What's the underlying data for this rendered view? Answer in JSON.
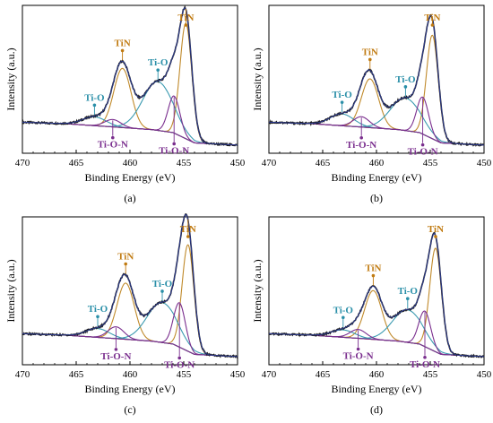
{
  "colors": {
    "raw": "#1a1a1a",
    "envelope": "#2b3a90",
    "background": "#7b2f8a",
    "tin": "#c08a2b",
    "tio": "#3a9ab0",
    "tion": "#7a2e8e",
    "tin_label": "#c07a10",
    "tio_label": "#2a8fa8",
    "tion_label": "#7a2e8e"
  },
  "chart_data": [
    {
      "type": "line",
      "panel_label": "(a)",
      "xlabel": "Binding Energy (eV)",
      "ylabel": "Intensity (a.u.)",
      "xlim": [
        470,
        450
      ],
      "xticks": [
        "470",
        "465",
        "460",
        "455",
        "450"
      ],
      "background": [
        [
          470,
          0.21
        ],
        [
          466,
          0.2
        ],
        [
          462,
          0.18
        ],
        [
          458,
          0.16
        ],
        [
          456,
          0.14
        ],
        [
          454,
          0.07
        ],
        [
          450,
          0.055
        ]
      ],
      "peaks": [
        {
          "label": "TiN",
          "center": 454.8,
          "height": 0.78,
          "width": 0.55
        },
        {
          "label": "TiN",
          "center": 460.7,
          "height": 0.4,
          "width": 0.8
        },
        {
          "label": "Ti-O",
          "center": 457.4,
          "height": 0.33,
          "width": 1.4
        },
        {
          "label": "Ti-O",
          "center": 463.3,
          "height": 0.06,
          "width": 1.1
        },
        {
          "label": "Ti-O-N",
          "center": 455.9,
          "height": 0.25,
          "width": 0.55
        },
        {
          "label": "Ti-O-N",
          "center": 461.6,
          "height": 0.05,
          "width": 0.75
        }
      ],
      "annotations": [
        {
          "text": "TiN",
          "x": 454.8,
          "kind": "tin",
          "dir": "up"
        },
        {
          "text": "TiN",
          "x": 460.7,
          "kind": "tin",
          "dir": "up"
        },
        {
          "text": "Ti-O",
          "x": 457.4,
          "kind": "tio",
          "dir": "up"
        },
        {
          "text": "Ti-O",
          "x": 463.3,
          "kind": "tio",
          "dir": "up"
        },
        {
          "text": "Ti-O-N",
          "x": 461.6,
          "kind": "tion",
          "dir": "down"
        },
        {
          "text": "Ti-O-N",
          "x": 455.9,
          "kind": "tion",
          "dir": "down"
        }
      ]
    },
    {
      "type": "line",
      "panel_label": "(b)",
      "xlabel": "Binding Energy (eV)",
      "ylabel": "Intensity (a.u.)",
      "xlim": [
        470,
        450
      ],
      "xticks": [
        "470",
        "465",
        "460",
        "455",
        "450"
      ],
      "background": [
        [
          470,
          0.21
        ],
        [
          466,
          0.2
        ],
        [
          462,
          0.18
        ],
        [
          458,
          0.16
        ],
        [
          456,
          0.14
        ],
        [
          454,
          0.07
        ],
        [
          450,
          0.055
        ]
      ],
      "peaks": [
        {
          "label": "TiN",
          "center": 454.8,
          "height": 0.7,
          "width": 0.55
        },
        {
          "label": "TiN",
          "center": 460.6,
          "height": 0.33,
          "width": 0.8
        },
        {
          "label": "Ti-O",
          "center": 457.3,
          "height": 0.22,
          "width": 1.4
        },
        {
          "label": "Ti-O",
          "center": 463.2,
          "height": 0.08,
          "width": 1.1
        },
        {
          "label": "Ti-O-N",
          "center": 455.7,
          "height": 0.25,
          "width": 0.55
        },
        {
          "label": "Ti-O-N",
          "center": 461.4,
          "height": 0.07,
          "width": 0.75
        }
      ],
      "annotations": [
        {
          "text": "TiN",
          "x": 454.8,
          "kind": "tin",
          "dir": "up"
        },
        {
          "text": "TiN",
          "x": 460.6,
          "kind": "tin",
          "dir": "up"
        },
        {
          "text": "Ti-O",
          "x": 457.3,
          "kind": "tio",
          "dir": "up"
        },
        {
          "text": "Ti-O",
          "x": 463.2,
          "kind": "tio",
          "dir": "up"
        },
        {
          "text": "Ti-O-N",
          "x": 461.4,
          "kind": "tion",
          "dir": "down"
        },
        {
          "text": "Ti-O-N",
          "x": 455.7,
          "kind": "tion",
          "dir": "down"
        }
      ]
    },
    {
      "type": "line",
      "panel_label": "(c)",
      "xlabel": "Binding Energy (eV)",
      "ylabel": "Intensity (a.u.)",
      "xlim": [
        470,
        450
      ],
      "xticks": [
        "470",
        "465",
        "460",
        "455",
        "450"
      ],
      "background": [
        [
          470,
          0.21
        ],
        [
          466,
          0.2
        ],
        [
          462,
          0.18
        ],
        [
          458,
          0.16
        ],
        [
          456,
          0.14
        ],
        [
          454,
          0.07
        ],
        [
          450,
          0.055
        ]
      ],
      "peaks": [
        {
          "label": "TiN",
          "center": 454.6,
          "height": 0.72,
          "width": 0.55
        },
        {
          "label": "TiN",
          "center": 460.4,
          "height": 0.38,
          "width": 0.8
        },
        {
          "label": "Ti-O",
          "center": 457.0,
          "height": 0.27,
          "width": 1.4
        },
        {
          "label": "Ti-O",
          "center": 463.0,
          "height": 0.06,
          "width": 1.1
        },
        {
          "label": "Ti-O-N",
          "center": 455.4,
          "height": 0.3,
          "width": 0.55
        },
        {
          "label": "Ti-O-N",
          "center": 461.3,
          "height": 0.08,
          "width": 0.75
        }
      ],
      "annotations": [
        {
          "text": "TiN",
          "x": 454.6,
          "kind": "tin",
          "dir": "up"
        },
        {
          "text": "TiN",
          "x": 460.4,
          "kind": "tin",
          "dir": "up"
        },
        {
          "text": "Ti-O",
          "x": 457.0,
          "kind": "tio",
          "dir": "up"
        },
        {
          "text": "Ti-O",
          "x": 463.0,
          "kind": "tio",
          "dir": "up"
        },
        {
          "text": "Ti-O-N",
          "x": 461.3,
          "kind": "tion",
          "dir": "down"
        },
        {
          "text": "Ti-O-N",
          "x": 455.4,
          "kind": "tion",
          "dir": "down"
        }
      ]
    },
    {
      "type": "line",
      "panel_label": "(d)",
      "xlabel": "Binding Energy (eV)",
      "ylabel": "Intensity (a.u.)",
      "xlim": [
        470,
        450
      ],
      "xticks": [
        "470",
        "465",
        "460",
        "455",
        "450"
      ],
      "background": [
        [
          470,
          0.21
        ],
        [
          466,
          0.2
        ],
        [
          462,
          0.18
        ],
        [
          458,
          0.16
        ],
        [
          456,
          0.14
        ],
        [
          454,
          0.07
        ],
        [
          450,
          0.055
        ]
      ],
      "peaks": [
        {
          "label": "TiN",
          "center": 454.5,
          "height": 0.7,
          "width": 0.55
        },
        {
          "label": "TiN",
          "center": 460.3,
          "height": 0.33,
          "width": 0.8
        },
        {
          "label": "Ti-O",
          "center": 457.1,
          "height": 0.22,
          "width": 1.4
        },
        {
          "label": "Ti-O",
          "center": 463.1,
          "height": 0.05,
          "width": 1.1
        },
        {
          "label": "Ti-O-N",
          "center": 455.5,
          "height": 0.24,
          "width": 0.55
        },
        {
          "label": "Ti-O-N",
          "center": 461.7,
          "height": 0.06,
          "width": 0.75
        }
      ],
      "annotations": [
        {
          "text": "TiN",
          "x": 454.5,
          "kind": "tin",
          "dir": "up"
        },
        {
          "text": "TiN",
          "x": 460.3,
          "kind": "tin",
          "dir": "up"
        },
        {
          "text": "Ti-O",
          "x": 457.1,
          "kind": "tio",
          "dir": "up"
        },
        {
          "text": "Ti-O",
          "x": 463.1,
          "kind": "tio",
          "dir": "up"
        },
        {
          "text": "Ti-O-N",
          "x": 461.7,
          "kind": "tion",
          "dir": "down"
        },
        {
          "text": "Ti-O-N",
          "x": 455.5,
          "kind": "tion",
          "dir": "down"
        }
      ]
    }
  ]
}
